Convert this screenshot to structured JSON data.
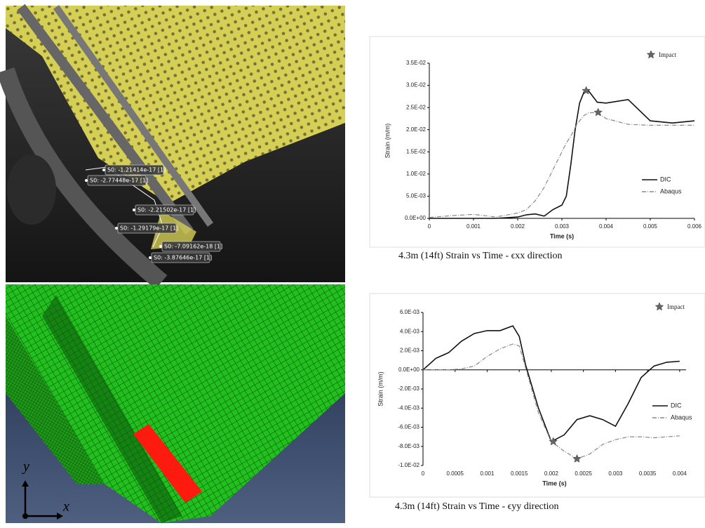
{
  "chart_data": [
    {
      "type": "line",
      "caption": "4.3m (14ft) Strain vs Time - ϵxx direction",
      "y_label": "Strain (m/m)",
      "x_label": "Time (s)",
      "x": [
        0,
        0.0005,
        0.001,
        0.0015,
        0.002,
        0.0022,
        0.0024,
        0.0026,
        0.0028,
        0.003,
        0.0031,
        0.0032,
        0.0033,
        0.0034,
        0.0035,
        0.0036,
        0.0038,
        0.004,
        0.0045,
        0.005,
        0.0055,
        0.006
      ],
      "series": [
        {
          "name": "DIC",
          "color": "#111111",
          "dash": "solid",
          "values": [
            0,
            0,
            0,
            0,
            0.0003,
            0.0008,
            0.001,
            0.0005,
            0.002,
            0.003,
            0.005,
            0.012,
            0.02,
            0.026,
            0.0285,
            0.0288,
            0.0262,
            0.026,
            0.0268,
            0.022,
            0.0215,
            0.022
          ]
        },
        {
          "name": "Abaqus",
          "color": "#888888",
          "dash": "dashdot",
          "values": [
            0.0002,
            0.0006,
            0.0009,
            0.0003,
            0.0012,
            0.002,
            0.004,
            0.007,
            0.011,
            0.015,
            0.017,
            0.0185,
            0.0205,
            0.022,
            0.0232,
            0.0238,
            0.0239,
            0.0225,
            0.0212,
            0.021,
            0.021,
            0.021
          ]
        },
        {
          "name": "Impact",
          "color": "#666666",
          "marker": "star",
          "x": [
            0.00355,
            0.00382
          ],
          "values": [
            0.0288,
            0.0239
          ]
        }
      ],
      "xlim": [
        0,
        0.006
      ],
      "xticks": [
        0,
        0.001,
        0.002,
        0.003,
        0.004,
        0.005,
        0.006
      ],
      "ylim": [
        0,
        0.035
      ],
      "yticks": [
        {
          "value": 0,
          "label": "0.0E+00"
        },
        {
          "value": 0.005,
          "label": "5.0E-03"
        },
        {
          "value": 0.01,
          "label": "1.0E-02"
        },
        {
          "value": 0.015,
          "label": "1.5E-02"
        },
        {
          "value": 0.02,
          "label": "2.0E-02"
        },
        {
          "value": 0.025,
          "label": "2.5E-02"
        },
        {
          "value": 0.03,
          "label": "3.0E-02"
        },
        {
          "value": 0.035,
          "label": "3.5E-02"
        }
      ],
      "grid": false,
      "legend": "right"
    },
    {
      "type": "line",
      "caption": "4.3m (14ft) Strain vs Time - ϵyy direction",
      "y_label": "Strain (m/m)",
      "x_label": "Time (s)",
      "x": [
        0,
        0.0002,
        0.0004,
        0.0006,
        0.0008,
        0.001,
        0.0012,
        0.0014,
        0.0015,
        0.0016,
        0.0018,
        0.002,
        0.0022,
        0.0024,
        0.0026,
        0.0028,
        0.003,
        0.0032,
        0.0034,
        0.0036,
        0.0038,
        0.004
      ],
      "series": [
        {
          "name": "DIC",
          "color": "#111111",
          "dash": "solid",
          "values": [
            0,
            0.0012,
            0.0018,
            0.003,
            0.0038,
            0.0041,
            0.0041,
            0.0046,
            0.0035,
            0.0005,
            -0.004,
            -0.0075,
            -0.0068,
            -0.0052,
            -0.0048,
            -0.0052,
            -0.0059,
            -0.0035,
            -0.0008,
            0.0004,
            0.0008,
            0.0009
          ]
        },
        {
          "name": "Abaqus",
          "color": "#888888",
          "dash": "dashdot",
          "values": [
            0,
            0,
            0,
            0.0001,
            0.0004,
            0.0014,
            0.0022,
            0.0027,
            0.0025,
            0.0002,
            -0.0045,
            -0.0075,
            -0.0085,
            -0.0093,
            -0.0088,
            -0.0078,
            -0.0073,
            -0.007,
            -0.007,
            -0.0071,
            -0.007,
            -0.0069
          ]
        },
        {
          "name": "Impact",
          "color": "#666666",
          "marker": "star",
          "x": [
            0.00203,
            0.0024
          ],
          "values": [
            -0.0075,
            -0.0093
          ]
        }
      ],
      "xlim": [
        0,
        0.0041
      ],
      "xticks": [
        0,
        0.0005,
        0.001,
        0.0015,
        0.002,
        0.0025,
        0.003,
        0.0035,
        0.004
      ],
      "ylim": [
        -0.01,
        0.006
      ],
      "yticks": [
        {
          "value": -0.01,
          "label": "-1.0E-02"
        },
        {
          "value": -0.008,
          "label": "-8.0E-03"
        },
        {
          "value": -0.006,
          "label": "-6.0E-03"
        },
        {
          "value": -0.004,
          "label": "-4.0E-03"
        },
        {
          "value": -0.002,
          "label": "-2.0E-03"
        },
        {
          "value": 0,
          "label": "0.0E+00"
        },
        {
          "value": 0.002,
          "label": "2.0E-03"
        },
        {
          "value": 0.004,
          "label": "4.0E-03"
        },
        {
          "value": 0.006,
          "label": "6.0E-03"
        }
      ],
      "grid": false,
      "legend": "right"
    }
  ],
  "dic_image": {
    "labels": [
      "S0: -1.21414e-17 [1]",
      "S0: -2.77448e-17 [1]",
      "S0: -2.21502e-17 [1]",
      "S0: -1.29179e-17 [1]",
      "S0: -7.09162e-18 [1]",
      "S0: -3.87646e-17 [1]"
    ]
  },
  "fe_image": {
    "axis_y": "y",
    "axis_x": "x"
  }
}
